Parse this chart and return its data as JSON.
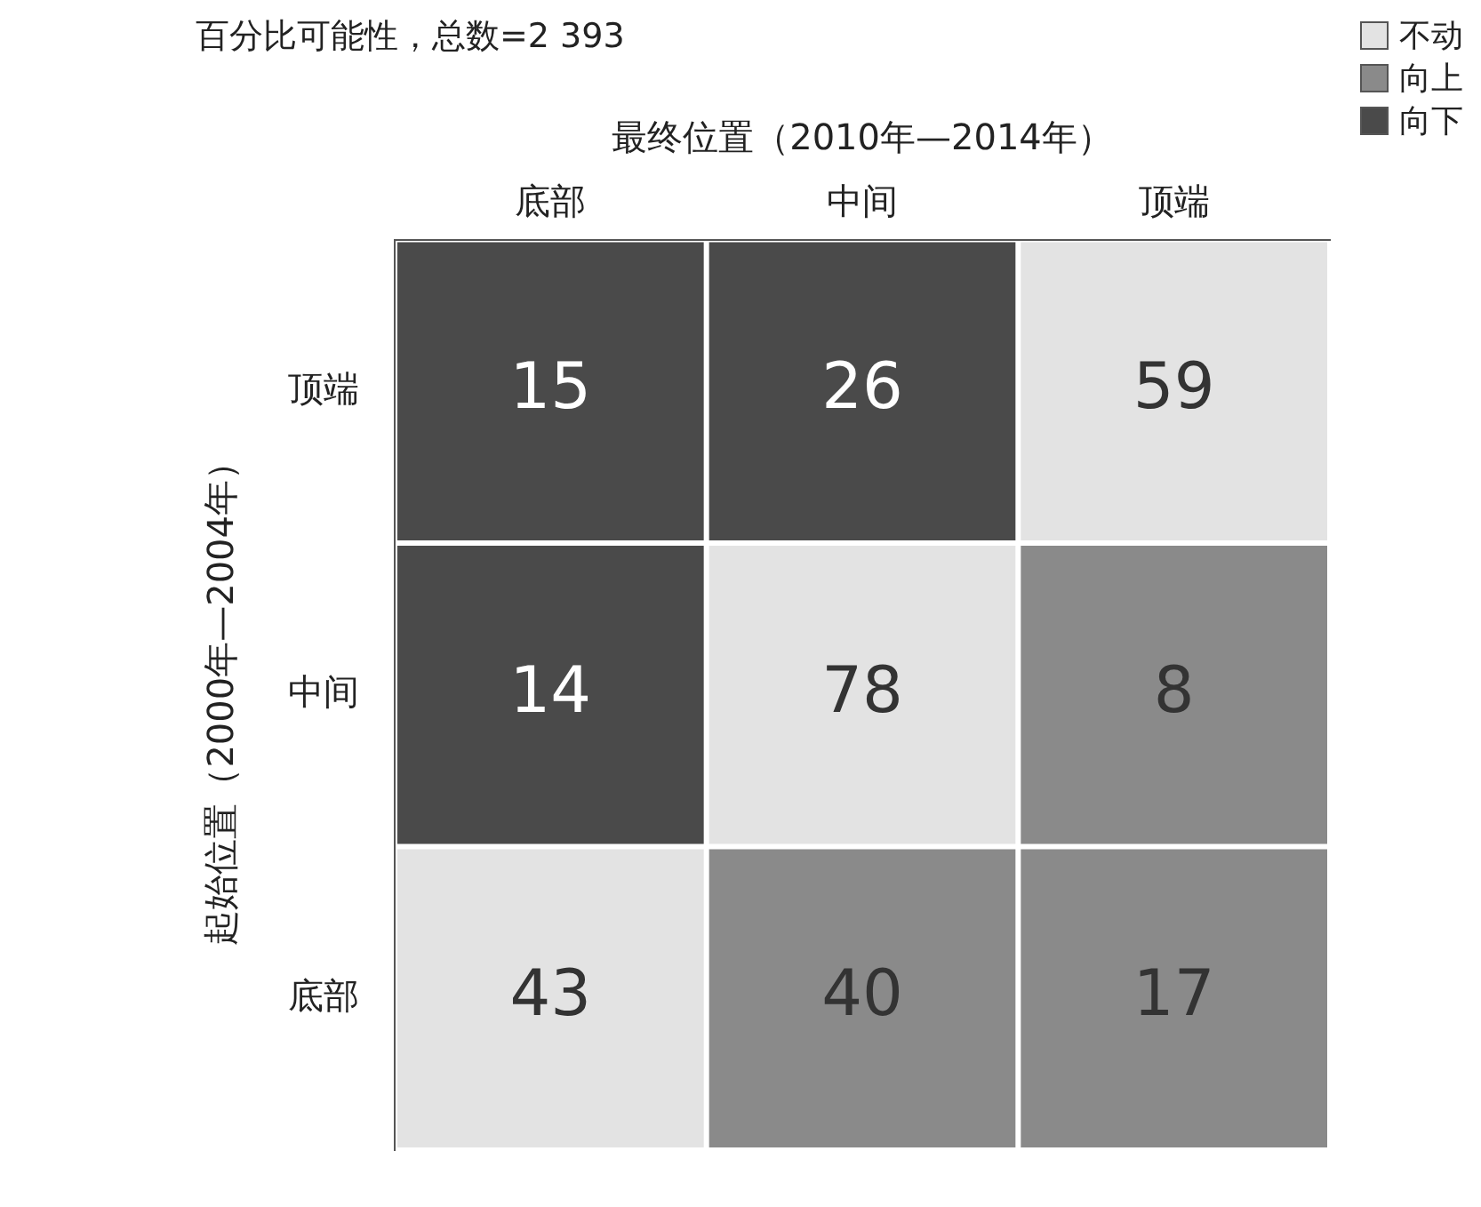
{
  "chart_data": {
    "type": "heatmap",
    "title": "百分比可能性，总数=2 393",
    "xlabel": "最终位置（2010年—2014年）",
    "ylabel": "起始位置（2000年—2004年）",
    "categories": [
      "底部",
      "中间",
      "顶端"
    ],
    "y_categories": [
      "顶端",
      "中间",
      "底部"
    ],
    "cells": [
      [
        15,
        26,
        59
      ],
      [
        14,
        78,
        8
      ],
      [
        43,
        40,
        17
      ]
    ],
    "colors": [
      [
        "#4a4a4a",
        "#4a4a4a",
        "#e3e3e3"
      ],
      [
        "#4a4a4a",
        "#e3e3e3",
        "#8a8a8a"
      ],
      [
        "#e3e3e3",
        "#8a8a8a",
        "#8a8a8a"
      ]
    ],
    "annotations": [
      "不动",
      "向上",
      "向下"
    ],
    "data_labels": true,
    "grid": false
  }
}
